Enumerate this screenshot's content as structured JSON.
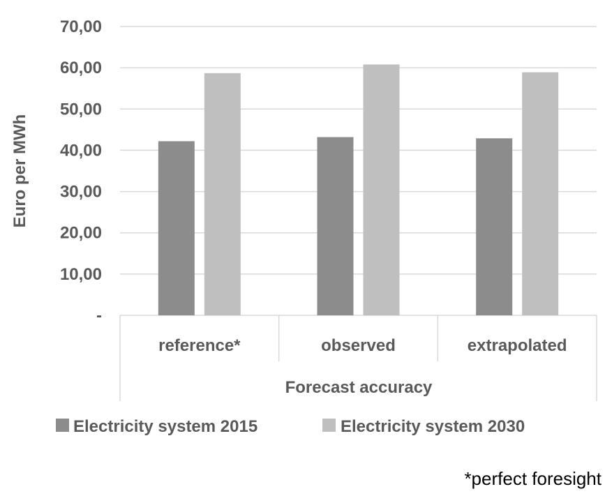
{
  "chart_data": {
    "type": "bar",
    "title": "",
    "xlabel": "Forecast accuracy",
    "ylabel": "Euro per MWh",
    "categories": [
      "reference*",
      "observed",
      "extrapolated"
    ],
    "series": [
      {
        "name": "Electricity system 2015",
        "values": [
          42.2,
          43.2,
          42.9
        ],
        "color": "#8c8c8c"
      },
      {
        "name": "Electricity system 2030",
        "values": [
          58.7,
          60.8,
          58.9
        ],
        "color": "#bfbfbf"
      }
    ],
    "ylim": [
      0,
      70
    ],
    "yticks": [
      {
        "value": 0,
        "label": "-"
      },
      {
        "value": 10,
        "label": "10,00"
      },
      {
        "value": 20,
        "label": "20,00"
      },
      {
        "value": 30,
        "label": "30,00"
      },
      {
        "value": 40,
        "label": "40,00"
      },
      {
        "value": 50,
        "label": "50,00"
      },
      {
        "value": 60,
        "label": "60,00"
      },
      {
        "value": 70,
        "label": "70,00"
      }
    ],
    "grid": true,
    "legend_position": "bottom",
    "annotation": "*perfect foresight",
    "gridline_color": "#d9d9d9"
  }
}
